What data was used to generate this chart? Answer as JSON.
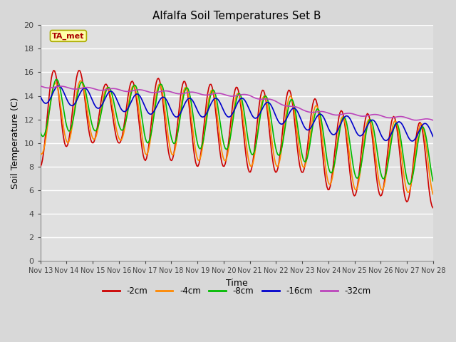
{
  "title": "Alfalfa Soil Temperatures Set B",
  "xlabel": "Time",
  "ylabel": "Soil Temperature (C)",
  "ylim": [
    0,
    20
  ],
  "yticks": [
    0,
    2,
    4,
    6,
    8,
    10,
    12,
    14,
    16,
    18,
    20
  ],
  "fig_bg_color": "#d8d8d8",
  "plot_bg_color": "#e0e0e0",
  "grid_color": "#ffffff",
  "colors": {
    "-2cm": "#cc0000",
    "-4cm": "#ff8800",
    "-8cm": "#00bb00",
    "-16cm": "#0000cc",
    "-32cm": "#bb44bb"
  },
  "ta_met_box_color": "#ffffaa",
  "ta_met_text_color": "#aa0000",
  "ta_met_edge_color": "#aaaa00",
  "x_start": 13,
  "x_end": 28,
  "x_ticks": [
    13,
    14,
    15,
    16,
    17,
    18,
    19,
    20,
    21,
    22,
    23,
    24,
    25,
    26,
    27,
    28
  ],
  "x_tick_labels": [
    "Nov 13",
    "Nov 14",
    "Nov 15",
    "Nov 16",
    "Nov 17",
    "Nov 18",
    "Nov 19",
    "Nov 20",
    "Nov 21",
    "Nov 22",
    "Nov 23",
    "Nov 24",
    "Nov 25",
    "Nov 26",
    "Nov 27",
    "Nov 28"
  ],
  "series_x": {
    "-2cm": [
      13.0,
      13.1,
      13.3,
      13.5,
      13.7,
      13.9,
      14.1,
      14.2,
      14.4,
      14.5,
      14.6,
      14.8,
      15.0,
      15.1,
      15.3,
      15.5,
      15.7,
      15.9,
      16.0,
      16.2,
      16.4,
      16.5,
      16.7,
      16.9,
      17.0,
      17.2,
      17.3,
      17.5,
      17.7,
      17.9,
      18.0,
      18.2,
      18.3,
      18.5,
      18.7,
      18.8,
      19.0,
      19.2,
      19.4,
      19.6,
      19.8,
      20.0,
      20.2,
      20.4,
      20.6,
      20.8,
      21.0,
      21.1,
      21.2,
      21.3,
      21.5,
      21.7,
      21.9,
      22.0,
      22.2,
      22.4,
      22.6,
      22.7,
      22.9,
      23.0,
      23.2,
      23.4,
      23.6,
      23.8,
      24.0,
      24.2,
      24.4,
      24.6,
      24.8,
      25.0,
      25.2,
      25.4,
      25.6,
      25.8,
      26.0,
      26.2,
      26.4,
      26.6,
      26.8,
      27.0,
      27.2,
      27.4,
      27.6,
      27.8,
      28.0
    ],
    "-4cm": [
      13.0,
      13.1,
      13.3,
      13.5,
      13.7,
      13.9,
      14.1,
      14.2,
      14.4,
      14.5,
      14.6,
      14.8,
      15.0,
      15.1,
      15.3,
      15.5,
      15.7,
      15.9,
      16.0,
      16.2,
      16.4,
      16.5,
      16.7,
      16.9,
      17.0,
      17.2,
      17.3,
      17.5,
      17.7,
      17.9,
      18.0,
      18.2,
      18.3,
      18.5,
      18.7,
      18.8,
      19.0,
      19.2,
      19.4,
      19.6,
      19.8,
      20.0,
      20.2,
      20.4,
      20.6,
      20.8,
      21.0,
      21.1,
      21.2,
      21.3,
      21.5,
      21.7,
      21.9,
      22.0,
      22.2,
      22.4,
      22.6,
      22.7,
      22.9,
      23.0,
      23.2,
      23.4,
      23.6,
      23.8,
      24.0,
      24.2,
      24.4,
      24.6,
      24.8,
      25.0,
      25.2,
      25.4,
      25.6,
      25.8,
      26.0,
      26.2,
      26.4,
      26.6,
      26.8,
      27.0,
      27.2,
      27.4,
      27.6,
      27.8,
      28.0
    ],
    "-8cm": [
      13.0,
      13.1,
      13.3,
      13.5,
      13.7,
      13.9,
      14.1,
      14.2,
      14.4,
      14.5,
      14.6,
      14.8,
      15.0,
      15.1,
      15.3,
      15.5,
      15.7,
      15.9,
      16.0,
      16.2,
      16.4,
      16.5,
      16.7,
      16.9,
      17.0,
      17.2,
      17.3,
      17.5,
      17.7,
      17.9,
      18.0,
      18.2,
      18.3,
      18.5,
      18.7,
      18.8,
      19.0,
      19.2,
      19.4,
      19.6,
      19.8,
      20.0,
      20.2,
      20.4,
      20.6,
      20.8,
      21.0,
      21.1,
      21.2,
      21.3,
      21.5,
      21.7,
      21.9,
      22.0,
      22.2,
      22.4,
      22.6,
      22.7,
      22.9,
      23.0,
      23.2,
      23.4,
      23.6,
      23.8,
      24.0,
      24.2,
      24.4,
      24.6,
      24.8,
      25.0,
      25.2,
      25.4,
      25.6,
      25.8,
      26.0,
      26.2,
      26.4,
      26.6,
      26.8,
      27.0,
      27.2,
      27.4,
      27.6,
      27.8,
      28.0
    ],
    "-16cm": [
      13.0,
      13.1,
      13.3,
      13.5,
      13.7,
      13.9,
      14.1,
      14.2,
      14.4,
      14.5,
      14.6,
      14.8,
      15.0,
      15.1,
      15.3,
      15.5,
      15.7,
      15.9,
      16.0,
      16.2,
      16.4,
      16.5,
      16.7,
      16.9,
      17.0,
      17.2,
      17.3,
      17.5,
      17.7,
      17.9,
      18.0,
      18.2,
      18.3,
      18.5,
      18.7,
      18.8,
      19.0,
      19.2,
      19.4,
      19.6,
      19.8,
      20.0,
      20.2,
      20.4,
      20.6,
      20.8,
      21.0,
      21.1,
      21.2,
      21.3,
      21.5,
      21.7,
      21.9,
      22.0,
      22.2,
      22.4,
      22.6,
      22.7,
      22.9,
      23.0,
      23.2,
      23.4,
      23.6,
      23.8,
      24.0,
      24.2,
      24.4,
      24.6,
      24.8,
      25.0,
      25.2,
      25.4,
      25.6,
      25.8,
      26.0,
      26.2,
      26.4,
      26.6,
      26.8,
      27.0,
      27.2,
      27.4,
      27.6,
      27.8,
      28.0
    ],
    "-32cm": [
      13.0,
      13.1,
      13.3,
      13.5,
      13.7,
      13.9,
      14.1,
      14.2,
      14.4,
      14.5,
      14.6,
      14.8,
      15.0,
      15.1,
      15.3,
      15.5,
      15.7,
      15.9,
      16.0,
      16.2,
      16.4,
      16.5,
      16.7,
      16.9,
      17.0,
      17.2,
      17.3,
      17.5,
      17.7,
      17.9,
      18.0,
      18.2,
      18.3,
      18.5,
      18.7,
      18.8,
      19.0,
      19.2,
      19.4,
      19.6,
      19.8,
      20.0,
      20.2,
      20.4,
      20.6,
      20.8,
      21.0,
      21.1,
      21.2,
      21.3,
      21.5,
      21.7,
      21.9,
      22.0,
      22.2,
      22.4,
      22.6,
      22.7,
      22.9,
      23.0,
      23.2,
      23.4,
      23.6,
      23.8,
      24.0,
      24.2,
      24.4,
      24.6,
      24.8,
      25.0,
      25.2,
      25.4,
      25.6,
      25.8,
      26.0,
      26.2,
      26.4,
      26.6,
      26.8,
      27.0,
      27.2,
      27.4,
      27.6,
      27.8,
      28.0
    ]
  },
  "legend_entries": [
    "-2cm",
    "-4cm",
    "-8cm",
    "-16cm",
    "-32cm"
  ],
  "linewidth": 1.2
}
